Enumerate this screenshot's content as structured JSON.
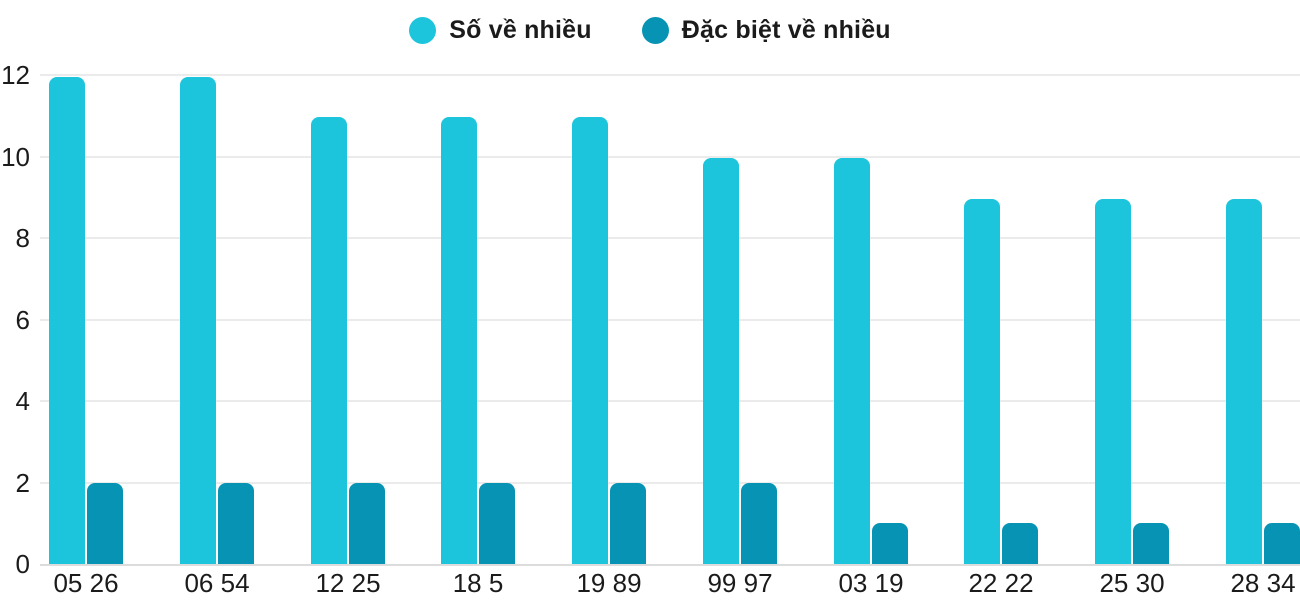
{
  "chart_data": {
    "type": "bar",
    "title": "",
    "categories": [
      "05 26",
      "06 54",
      "12 25",
      "18 5",
      "19 89",
      "99 97",
      "03 19",
      "22 22",
      "25 30",
      "28 34"
    ],
    "series": [
      {
        "name": "Số về nhiều",
        "color": "#1cc5dc",
        "values": [
          12,
          12,
          11,
          11,
          11,
          10,
          10,
          9,
          9,
          9
        ]
      },
      {
        "name": "Đặc biệt về nhiều",
        "color": "#0794b4",
        "values": [
          2,
          2,
          2,
          2,
          2,
          2,
          1,
          1,
          1,
          1
        ]
      }
    ],
    "yticks": [
      0,
      2,
      4,
      6,
      8,
      10,
      12
    ],
    "ylim": [
      0,
      12
    ],
    "xlabel": "",
    "ylabel": "",
    "grid": true,
    "legend_position": "top-center"
  },
  "colors": {
    "grid": "#ebebeb",
    "baseline": "#dcdcdc",
    "text": "#1b1b1b",
    "background": "#ffffff"
  }
}
